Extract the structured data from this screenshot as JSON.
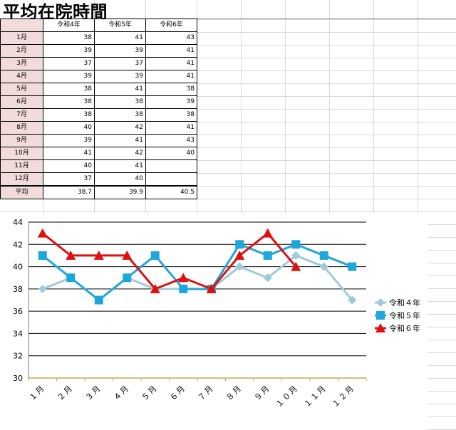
{
  "sheet": {
    "title": "平均在院時間",
    "headers": [
      "令和4年",
      "令和5年",
      "令和6年"
    ],
    "rows": [
      {
        "label": "1月",
        "v": [
          "38",
          "41",
          "43"
        ]
      },
      {
        "label": "2月",
        "v": [
          "39",
          "39",
          "41"
        ]
      },
      {
        "label": "3月",
        "v": [
          "37",
          "37",
          "41"
        ]
      },
      {
        "label": "4月",
        "v": [
          "39",
          "39",
          "41"
        ]
      },
      {
        "label": "5月",
        "v": [
          "38",
          "41",
          "38"
        ]
      },
      {
        "label": "6月",
        "v": [
          "38",
          "38",
          "39"
        ]
      },
      {
        "label": "7月",
        "v": [
          "38",
          "38",
          "38"
        ]
      },
      {
        "label": "8月",
        "v": [
          "40",
          "42",
          "41"
        ]
      },
      {
        "label": "9月",
        "v": [
          "39",
          "41",
          "43"
        ]
      },
      {
        "label": "10月",
        "v": [
          "41",
          "42",
          "40"
        ]
      },
      {
        "label": "11月",
        "v": [
          "40",
          "41",
          ""
        ]
      },
      {
        "label": "12月",
        "v": [
          "37",
          "40",
          ""
        ]
      }
    ],
    "average": {
      "label": "平均",
      "v": [
        "38.7",
        "39.9",
        "40.5"
      ]
    }
  },
  "chart_data": {
    "type": "line",
    "categories": [
      "１月",
      "２月",
      "３月",
      "４月",
      "５月",
      "６月",
      "７月",
      "８月",
      "９月",
      "１０月",
      "１１月",
      "１２月"
    ],
    "series": [
      {
        "name": "令和４年",
        "values": [
          38,
          39,
          37,
          39,
          38,
          38,
          38,
          40,
          39,
          41,
          40,
          37
        ],
        "color": "#9ecbd9",
        "marker": "diamond"
      },
      {
        "name": "令和５年",
        "values": [
          41,
          39,
          37,
          39,
          41,
          38,
          38,
          42,
          41,
          42,
          41,
          40
        ],
        "color": "#1fa7dc",
        "marker": "square"
      },
      {
        "name": "令和６年",
        "values": [
          43,
          41,
          41,
          41,
          38,
          39,
          38,
          41,
          43,
          40,
          null,
          null
        ],
        "color": "#e01010",
        "marker": "triangle"
      }
    ],
    "ylim": [
      30,
      44
    ],
    "yticks": [
      30,
      32,
      34,
      36,
      38,
      40,
      42,
      44
    ],
    "grid": true,
    "legend": "right"
  }
}
